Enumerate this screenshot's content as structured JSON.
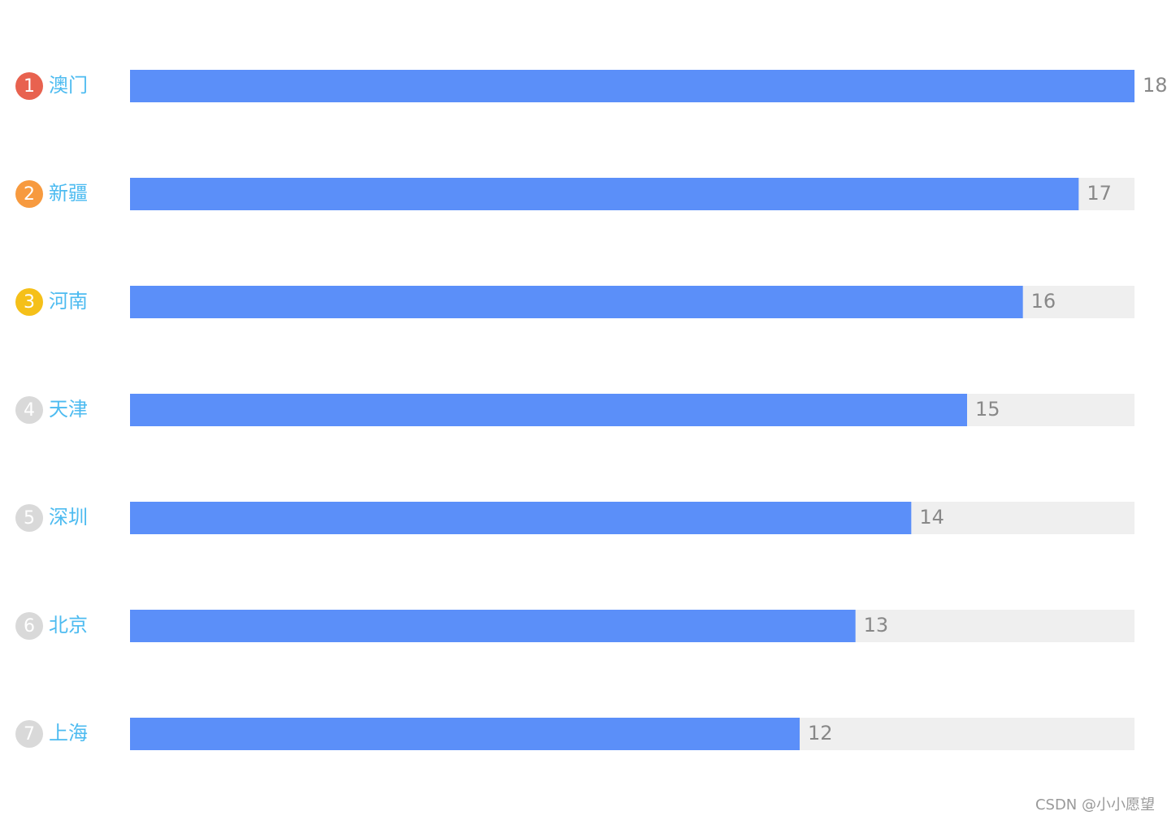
{
  "chart_data": {
    "type": "bar",
    "orientation": "horizontal",
    "categories": [
      "澳门",
      "新疆",
      "河南",
      "天津",
      "深圳",
      "北京",
      "上海"
    ],
    "ranks": [
      1,
      2,
      3,
      4,
      5,
      6,
      7
    ],
    "rank_colors": [
      "#e8624f",
      "#f79a3f",
      "#f5c019",
      "#d9d9d9",
      "#d9d9d9",
      "#d9d9d9",
      "#d9d9d9"
    ],
    "values": [
      18,
      17,
      16,
      15,
      14,
      13,
      12
    ],
    "color": "#5b8ff9",
    "track_color": "#efefef",
    "xlim": [
      0,
      18
    ],
    "watermark": "CSDN @小小愿望"
  }
}
